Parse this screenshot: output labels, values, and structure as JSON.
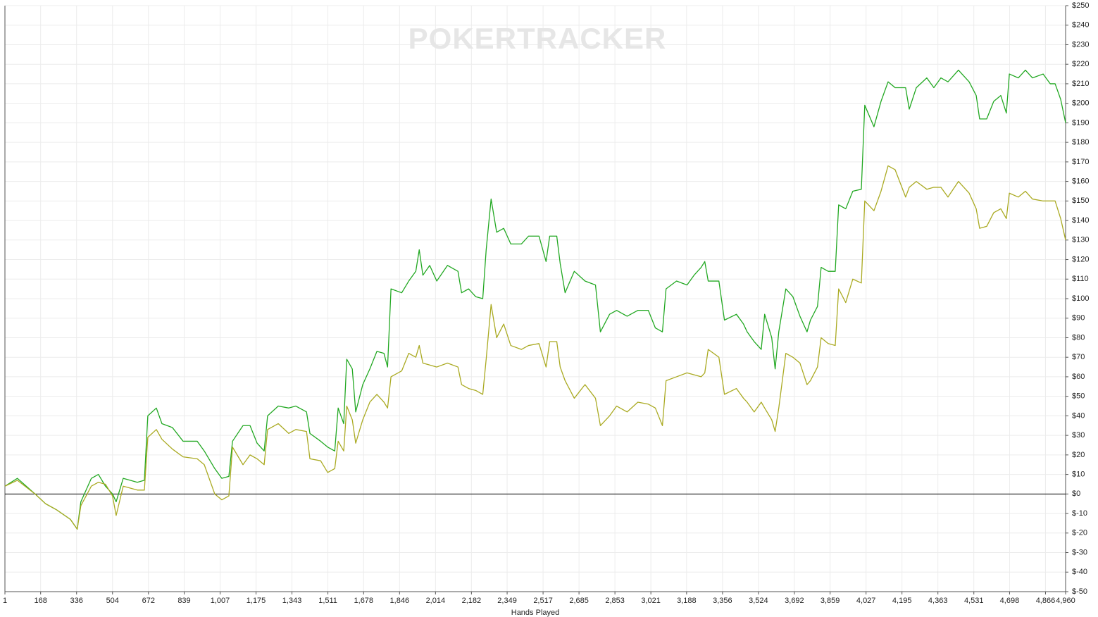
{
  "chart_data": {
    "type": "line",
    "watermark": "POKERTRACKER",
    "x_label": "Hands Played",
    "x": [
      1,
      59,
      142,
      191,
      241,
      307,
      339,
      356,
      405,
      438,
      471,
      504,
      521,
      554,
      620,
      653,
      669,
      709,
      735,
      784,
      834,
      900,
      933,
      982,
      1015,
      1048,
      1065,
      1114,
      1147,
      1180,
      1213,
      1229,
      1279,
      1328,
      1361,
      1411,
      1427,
      1477,
      1510,
      1543,
      1559,
      1585,
      1599,
      1625,
      1641,
      1674,
      1707,
      1740,
      1773,
      1790,
      1806,
      1856,
      1889,
      1922,
      1938,
      1955,
      1987,
      2020,
      2070,
      2119,
      2136,
      2169,
      2202,
      2235,
      2251,
      2274,
      2300,
      2333,
      2366,
      2416,
      2449,
      2498,
      2531,
      2548,
      2581,
      2597,
      2620,
      2663,
      2713,
      2762,
      2785,
      2828,
      2861,
      2910,
      2960,
      3009,
      3042,
      3075,
      3092,
      3141,
      3190,
      3223,
      3256,
      3273,
      3289,
      3339,
      3365,
      3421,
      3454,
      3471,
      3504,
      3537,
      3553,
      3586,
      3602,
      3619,
      3652,
      3685,
      3718,
      3751,
      3767,
      3800,
      3817,
      3850,
      3883,
      3899,
      3932,
      3965,
      4005,
      4021,
      4064,
      4097,
      4130,
      4163,
      4212,
      4229,
      4262,
      4311,
      4344,
      4377,
      4410,
      4459,
      4509,
      4542,
      4558,
      4591,
      4624,
      4657,
      4683,
      4697,
      4739,
      4772,
      4805,
      4855,
      4888,
      4911,
      4937,
      4960
    ],
    "series": [
      {
        "color": "#22a822",
        "values": [
          4,
          8,
          0,
          -5,
          -8,
          -13,
          -18,
          -4,
          8,
          10,
          4,
          0,
          -4,
          8,
          6,
          7,
          40,
          44,
          36,
          34,
          27,
          27,
          22,
          13,
          8,
          9,
          27,
          35,
          35,
          26,
          22,
          40,
          45,
          44,
          45,
          42,
          31,
          27,
          24,
          22,
          44,
          36,
          69,
          64,
          42,
          56,
          64,
          73,
          72,
          65,
          105,
          103,
          109,
          114,
          125,
          112,
          117,
          109,
          117,
          114,
          103,
          105,
          101,
          100,
          125,
          151,
          134,
          136,
          128,
          128,
          132,
          132,
          119,
          132,
          132,
          118,
          103,
          114,
          109,
          107,
          83,
          92,
          94,
          91,
          94,
          94,
          85,
          83,
          105,
          109,
          107,
          112,
          116,
          119,
          109,
          109,
          89,
          92,
          87,
          83,
          78,
          74,
          92,
          80,
          64,
          83,
          105,
          101,
          91,
          83,
          89,
          96,
          116,
          114,
          114,
          148,
          146,
          155,
          156,
          199,
          188,
          201,
          211,
          208,
          208,
          197,
          208,
          213,
          208,
          213,
          211,
          217,
          211,
          204,
          192,
          192,
          201,
          204,
          195,
          215,
          213,
          217,
          213,
          215,
          210,
          210,
          202,
          190
        ]
      },
      {
        "color": "#aaaa22",
        "values": [
          4,
          7,
          0,
          -5,
          -8,
          -13,
          -18,
          -6,
          4,
          6,
          5,
          -1,
          -11,
          4,
          2,
          2,
          29,
          33,
          28,
          23,
          19,
          18,
          15,
          0,
          -3,
          -1,
          24,
          15,
          20,
          18,
          15,
          33,
          36,
          31,
          33,
          32,
          18,
          17,
          11,
          13,
          27,
          22,
          45,
          38,
          26,
          38,
          47,
          51,
          47,
          44,
          60,
          63,
          72,
          70,
          76,
          67,
          66,
          65,
          67,
          65,
          56,
          54,
          53,
          51,
          69,
          97,
          80,
          87,
          76,
          74,
          76,
          77,
          65,
          78,
          78,
          65,
          58,
          49,
          56,
          49,
          35,
          40,
          45,
          42,
          47,
          46,
          44,
          35,
          58,
          60,
          62,
          61,
          60,
          62,
          74,
          70,
          51,
          54,
          49,
          47,
          42,
          47,
          44,
          38,
          32,
          44,
          72,
          70,
          67,
          56,
          58,
          65,
          80,
          77,
          76,
          105,
          98,
          110,
          108,
          150,
          145,
          155,
          168,
          166,
          152,
          157,
          160,
          156,
          157,
          157,
          152,
          160,
          154,
          146,
          136,
          137,
          144,
          146,
          141,
          154,
          152,
          155,
          151,
          150,
          150,
          150,
          141,
          130
        ]
      }
    ],
    "xlim": [
      1,
      4960
    ],
    "xticks": [
      1,
      168,
      336,
      504,
      672,
      839,
      {
        "value": 1007,
        "label": "1,007"
      },
      {
        "value": 1175,
        "label": "1,175"
      },
      {
        "value": 1343,
        "label": "1,343"
      },
      {
        "value": 1511,
        "label": "1,511"
      },
      {
        "value": 1678,
        "label": "1,678"
      },
      {
        "value": 1846,
        "label": "1,846"
      },
      {
        "value": 2014,
        "label": "2,014"
      },
      {
        "value": 2182,
        "label": "2,182"
      },
      {
        "value": 2349,
        "label": "2,349"
      },
      {
        "value": 2517,
        "label": "2,517"
      },
      {
        "value": 2685,
        "label": "2,685"
      },
      {
        "value": 2853,
        "label": "2,853"
      },
      {
        "value": 3021,
        "label": "3,021"
      },
      {
        "value": 3188,
        "label": "3,188"
      },
      {
        "value": 3356,
        "label": "3,356"
      },
      {
        "value": 3524,
        "label": "3,524"
      },
      {
        "value": 3692,
        "label": "3,692"
      },
      {
        "value": 3859,
        "label": "3,859"
      },
      {
        "value": 4027,
        "label": "4,027"
      },
      {
        "value": 4195,
        "label": "4,195"
      },
      {
        "value": 4363,
        "label": "4,363"
      },
      {
        "value": 4531,
        "label": "4,531"
      },
      {
        "value": 4698,
        "label": "4,698"
      },
      {
        "value": 4866,
        "label": "4,866"
      },
      {
        "value": 4960,
        "label": "4,960"
      }
    ],
    "ylim": [
      -50,
      250
    ],
    "yticks": [
      {
        "value": -50,
        "label": "$-50"
      },
      {
        "value": -40,
        "label": "$-40"
      },
      {
        "value": -30,
        "label": "$-30"
      },
      {
        "value": -20,
        "label": "$-20"
      },
      {
        "value": -10,
        "label": "$-10"
      },
      {
        "value": 0,
        "label": "$0"
      },
      {
        "value": 10,
        "label": "$10"
      },
      {
        "value": 20,
        "label": "$20"
      },
      {
        "value": 30,
        "label": "$30"
      },
      {
        "value": 40,
        "label": "$40"
      },
      {
        "value": 50,
        "label": "$50"
      },
      {
        "value": 60,
        "label": "$60"
      },
      {
        "value": 70,
        "label": "$70"
      },
      {
        "value": 80,
        "label": "$80"
      },
      {
        "value": 90,
        "label": "$90"
      },
      {
        "value": 100,
        "label": "$100"
      },
      {
        "value": 110,
        "label": "$110"
      },
      {
        "value": 120,
        "label": "$120"
      },
      {
        "value": 130,
        "label": "$130"
      },
      {
        "value": 140,
        "label": "$140"
      },
      {
        "value": 150,
        "label": "$150"
      },
      {
        "value": 160,
        "label": "$160"
      },
      {
        "value": 170,
        "label": "$170"
      },
      {
        "value": 180,
        "label": "$180"
      },
      {
        "value": 190,
        "label": "$190"
      },
      {
        "value": 200,
        "label": "$200"
      },
      {
        "value": 210,
        "label": "$210"
      },
      {
        "value": 220,
        "label": "$220"
      },
      {
        "value": 230,
        "label": "$230"
      },
      {
        "value": 240,
        "label": "$240"
      },
      {
        "value": 250,
        "label": "$250"
      }
    ],
    "grid": true
  }
}
